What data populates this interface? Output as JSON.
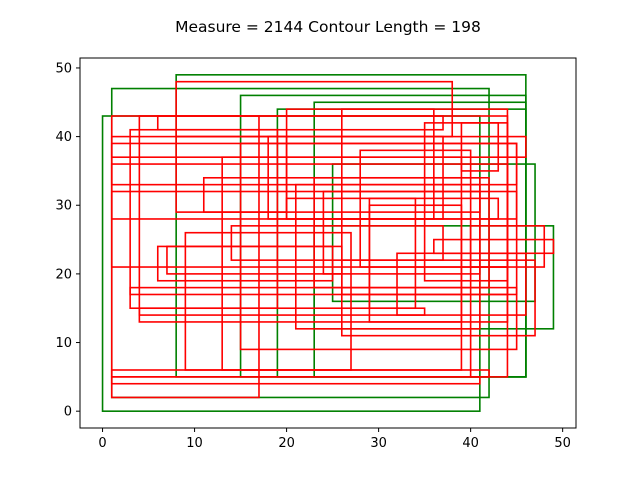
{
  "chart_data": {
    "type": "rectangles",
    "title": "Measure = 2144 Contour Length = 198",
    "xlabel": "",
    "ylabel": "",
    "xlim": [
      -2.45,
      51.45
    ],
    "ylim": [
      -2.45,
      51.45
    ],
    "xticks": [
      0,
      10,
      20,
      30,
      40,
      50
    ],
    "yticks": [
      0,
      10,
      20,
      30,
      40,
      50
    ],
    "grid": false,
    "series": [
      {
        "color": "#008000",
        "rectangles": [
          [
            0,
            0,
            41,
            43
          ],
          [
            1,
            2,
            42,
            47
          ],
          [
            8,
            5,
            46,
            49
          ],
          [
            15,
            5,
            46,
            46
          ],
          [
            19,
            5,
            46,
            44
          ],
          [
            23,
            5,
            46,
            45
          ],
          [
            23,
            12,
            49,
            27
          ],
          [
            25,
            16,
            47,
            36
          ]
        ]
      },
      {
        "color": "#ff0000",
        "rectangles": [
          [
            1,
            2,
            17,
            43
          ],
          [
            1,
            5,
            42,
            6
          ],
          [
            1,
            4,
            41,
            5
          ],
          [
            1,
            37,
            46,
            40
          ],
          [
            1,
            21,
            44,
            36
          ],
          [
            1,
            28,
            45,
            32
          ],
          [
            1,
            33,
            45,
            39
          ],
          [
            3,
            15,
            19,
            41
          ],
          [
            4,
            13,
            44,
            43
          ],
          [
            6,
            19,
            25,
            24
          ],
          [
            7,
            20,
            26,
            24
          ],
          [
            8,
            29,
            20,
            40
          ],
          [
            8,
            40,
            38,
            48
          ],
          [
            6,
            41,
            37,
            43
          ],
          [
            9,
            6,
            27,
            26
          ],
          [
            13,
            6,
            39,
            37
          ],
          [
            11,
            29,
            41,
            34
          ],
          [
            15,
            9,
            45,
            39
          ],
          [
            4,
            38,
            18,
            38
          ],
          [
            18,
            28,
            37,
            40
          ],
          [
            20,
            28,
            36,
            44
          ],
          [
            20,
            28,
            43,
            31
          ],
          [
            21,
            12,
            41,
            33
          ],
          [
            23,
            18,
            42,
            34
          ],
          [
            24,
            20,
            41,
            32
          ],
          [
            26,
            11,
            47,
            22
          ],
          [
            26,
            17,
            44,
            44
          ],
          [
            28,
            21,
            40,
            38
          ],
          [
            29,
            15,
            34,
            31
          ],
          [
            29,
            13,
            39,
            30
          ],
          [
            32,
            14,
            46,
            23
          ],
          [
            35,
            19,
            44,
            42
          ],
          [
            36,
            23,
            49,
            25
          ],
          [
            39,
            35,
            43,
            42
          ],
          [
            40,
            5,
            44,
            21
          ],
          [
            40,
            21,
            48,
            27
          ],
          [
            4,
            14,
            35,
            15
          ],
          [
            3,
            17,
            45,
            18
          ],
          [
            14,
            22,
            37,
            27
          ]
        ]
      }
    ]
  }
}
